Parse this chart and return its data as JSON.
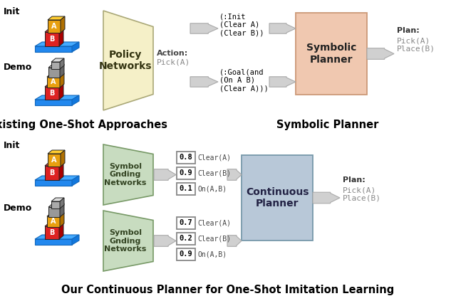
{
  "bg_color": "#ffffff",
  "trapezoid_color_top": "#f5f0c8",
  "trapezoid_color_bottom": "#c8dcc0",
  "symbolic_box_color": "#f0c8b0",
  "continuous_box_color": "#b8c8d8",
  "arrow_color_fill": "#d0d0d0",
  "arrow_color_edge": "#999999",
  "title_top_left": "Existing One-Shot Approaches",
  "title_top_right": "Symbolic Planner",
  "title_bottom": "Our Continuous Planner for One-Shot Imitation Learning",
  "init_label": "Init",
  "demo_label": "Demo",
  "policy_networks_text": "Policy\nNetworks",
  "action_bold": "Action:",
  "action_mono": "Pick(A)",
  "symbolic_planner_text": "Symbolic\nPlanner",
  "continuous_planner_text": "Continuous\nPlanner",
  "symbol_gnding_text": "Symbol\nGnding\nNetworks",
  "init_text_top": "(:Init\n(Clear A)\n(Clear B))",
  "goal_text_top": "(:Goal(and\n(On A B)\n(Clear A)))",
  "plan_bold": "Plan:",
  "plan_mono": "Pick(A)\nPlace(B)",
  "top_values_init": [
    "0.8",
    "0.9",
    "0.1"
  ],
  "top_labels_init": [
    "Clear(A)",
    "Clear(B)",
    "On(A,B)"
  ],
  "bottom_values": [
    "0.7",
    "0.2",
    "0.9"
  ],
  "bottom_labels": [
    "Clear(A)",
    "Clear(B)",
    "On(A,B)"
  ]
}
